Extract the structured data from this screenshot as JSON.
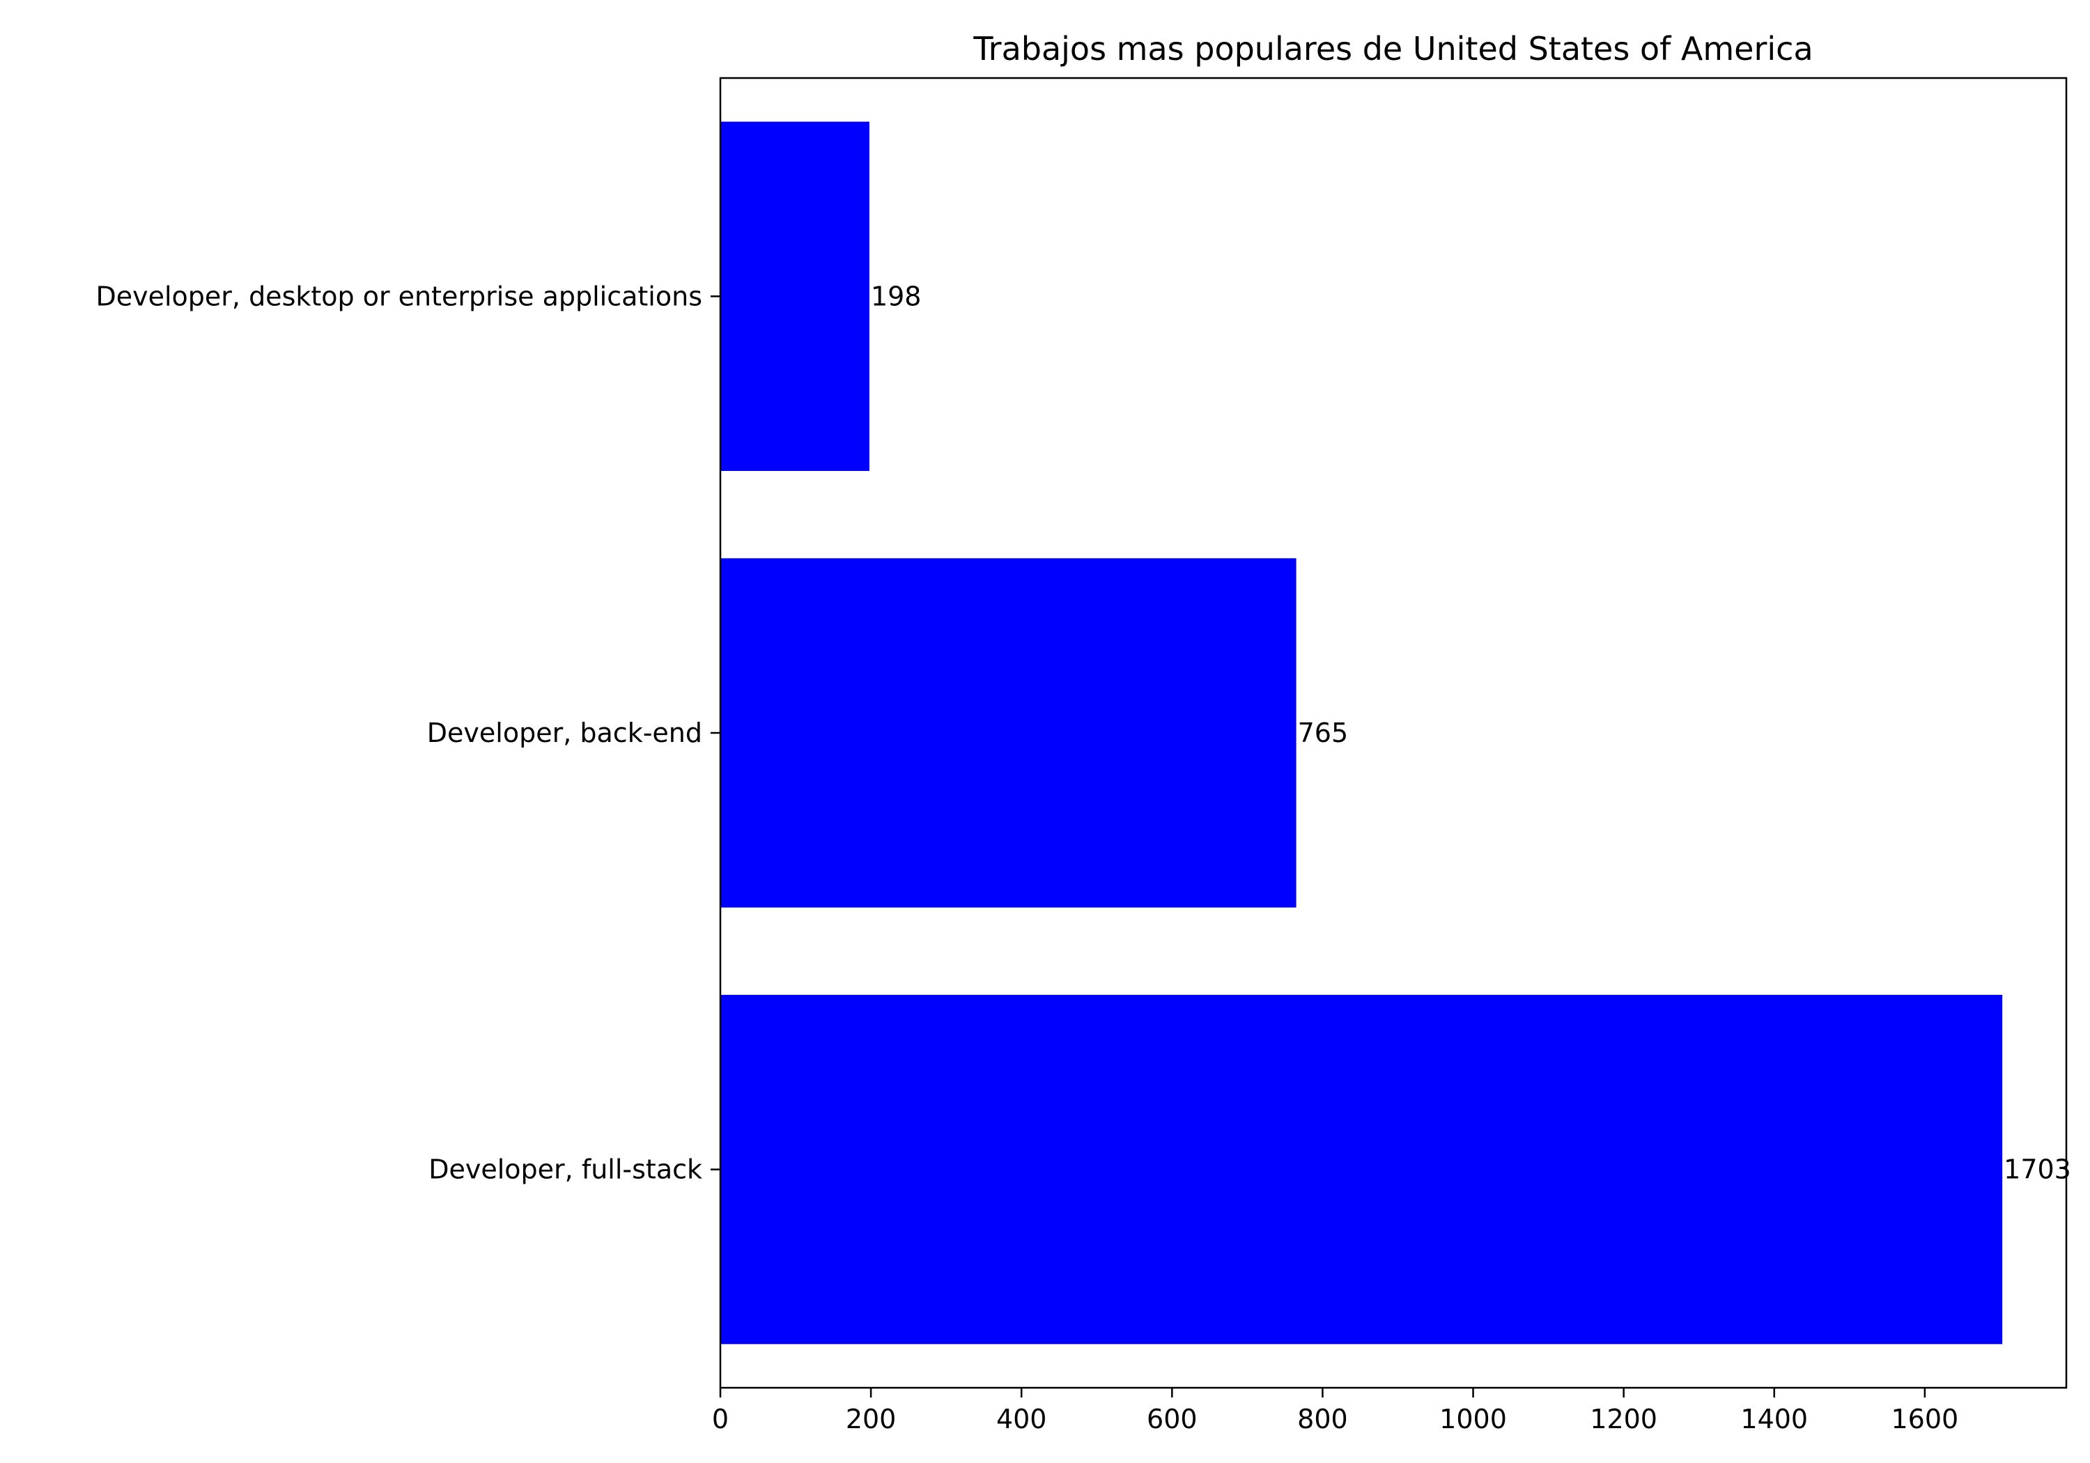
{
  "chart_data": {
    "type": "bar",
    "orientation": "horizontal",
    "title": "Trabajos mas populares de United States of America",
    "xlabel": "",
    "ylabel": "",
    "categories": [
      "Developer, desktop or enterprise applications",
      "Developer, back-end",
      "Developer, full-stack"
    ],
    "values": [
      198,
      765,
      1703
    ],
    "data_labels": [
      "198",
      "765",
      "1703"
    ],
    "xlim": [
      0,
      1788
    ],
    "x_ticks": [
      0,
      200,
      400,
      600,
      800,
      1000,
      1200,
      1400,
      1600
    ],
    "x_tick_labels": [
      "0",
      "200",
      "400",
      "600",
      "800",
      "1000",
      "1200",
      "1400",
      "1600"
    ],
    "bar_color": "#0000ff",
    "grid": false,
    "legend": "none"
  }
}
